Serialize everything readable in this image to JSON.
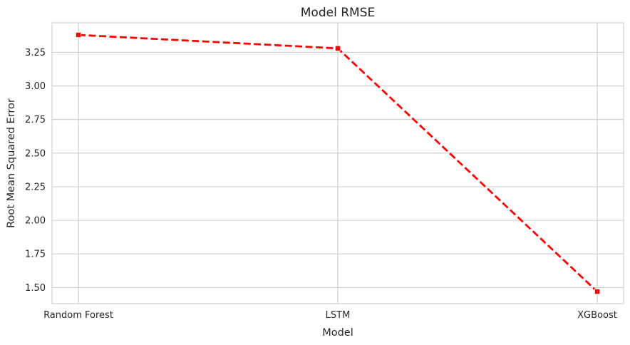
{
  "chart_data": {
    "type": "line",
    "title": "Model RMSE",
    "xlabel": "Model",
    "ylabel": "Root Mean Squared Error",
    "categories": [
      "Random Forest",
      "LSTM",
      "XGBoost"
    ],
    "series": [
      {
        "values": [
          3.38,
          3.28,
          1.47
        ],
        "color": "#ff0000",
        "line_style": "dashed",
        "marker": "square"
      }
    ],
    "ylim": [
      1.38,
      3.47
    ],
    "yticks": [
      1.5,
      1.75,
      2.0,
      2.25,
      2.5,
      2.75,
      3.0,
      3.25
    ],
    "ytick_labels": [
      "1.50",
      "1.75",
      "2.00",
      "2.25",
      "2.50",
      "2.75",
      "3.00",
      "3.25"
    ],
    "grid": true,
    "legend": "none"
  }
}
